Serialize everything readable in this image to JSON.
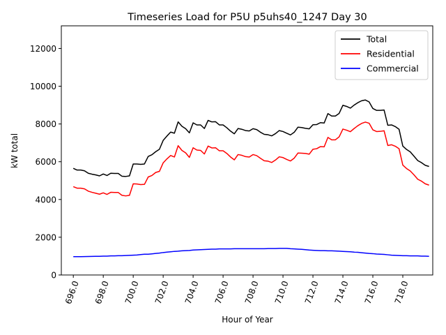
{
  "chart_data": {
    "type": "line",
    "title": "Timeseries Load for P5U p5uhs40_1247  Day 30",
    "xlabel": "Hour of Year",
    "ylabel": "kW total",
    "xlim": [
      695.2,
      720.0
    ],
    "ylim": [
      0,
      13200
    ],
    "xticks": [
      696,
      698,
      700,
      702,
      704,
      706,
      708,
      710,
      712,
      714,
      716,
      718
    ],
    "xtick_labels": [
      "696.0",
      "698.0",
      "700.0",
      "702.0",
      "704.0",
      "706.0",
      "708.0",
      "710.0",
      "712.0",
      "714.0",
      "716.0",
      "718.0"
    ],
    "yticks": [
      0,
      2000,
      4000,
      6000,
      8000,
      10000,
      12000
    ],
    "ytick_labels": [
      "0",
      "2000",
      "4000",
      "6000",
      "8000",
      "10000",
      "12000"
    ],
    "legend_position": "top-right",
    "x": [
      696.0,
      696.25,
      696.5,
      696.75,
      697.0,
      697.25,
      697.5,
      697.75,
      698.0,
      698.25,
      698.5,
      698.75,
      699.0,
      699.25,
      699.5,
      699.75,
      700.0,
      700.25,
      700.5,
      700.75,
      701.0,
      701.25,
      701.5,
      701.75,
      702.0,
      702.25,
      702.5,
      702.75,
      703.0,
      703.25,
      703.5,
      703.75,
      704.0,
      704.25,
      704.5,
      704.75,
      705.0,
      705.25,
      705.5,
      705.75,
      706.0,
      706.25,
      706.5,
      706.75,
      707.0,
      707.25,
      707.5,
      707.75,
      708.0,
      708.25,
      708.5,
      708.75,
      709.0,
      709.25,
      709.5,
      709.75,
      710.0,
      710.25,
      710.5,
      710.75,
      711.0,
      711.25,
      711.5,
      711.75,
      712.0,
      712.25,
      712.5,
      712.75,
      713.0,
      713.25,
      713.5,
      713.75,
      714.0,
      714.25,
      714.5,
      714.75,
      715.0,
      715.25,
      715.5,
      715.75,
      716.0,
      716.25,
      716.5,
      716.75,
      717.0,
      717.25,
      717.5,
      717.75,
      718.0,
      718.25,
      718.5,
      718.75,
      719.0,
      719.25,
      719.5,
      719.75
    ],
    "series": [
      {
        "name": "Total",
        "color": "#000000",
        "values": [
          5650,
          5560,
          5560,
          5520,
          5390,
          5340,
          5300,
          5250,
          5350,
          5270,
          5390,
          5380,
          5380,
          5230,
          5220,
          5250,
          5880,
          5880,
          5860,
          5880,
          6280,
          6370,
          6530,
          6660,
          7130,
          7360,
          7570,
          7510,
          8110,
          7880,
          7750,
          7530,
          8060,
          7950,
          7950,
          7760,
          8190,
          8110,
          8120,
          7950,
          7950,
          7800,
          7620,
          7480,
          7760,
          7720,
          7650,
          7630,
          7750,
          7700,
          7560,
          7450,
          7430,
          7370,
          7490,
          7650,
          7600,
          7510,
          7420,
          7560,
          7830,
          7810,
          7770,
          7740,
          7960,
          7970,
          8070,
          8050,
          8550,
          8420,
          8420,
          8560,
          8990,
          8930,
          8840,
          9000,
          9130,
          9230,
          9270,
          9170,
          8820,
          8720,
          8720,
          8740,
          7930,
          7950,
          7860,
          7720,
          6830,
          6650,
          6520,
          6290,
          6060,
          5950,
          5810,
          5750
        ]
      },
      {
        "name": "Residential",
        "color": "#ff0000",
        "values": [
          4680,
          4600,
          4600,
          4560,
          4440,
          4380,
          4330,
          4280,
          4350,
          4270,
          4380,
          4370,
          4370,
          4220,
          4190,
          4220,
          4830,
          4820,
          4790,
          4800,
          5190,
          5270,
          5430,
          5490,
          5940,
          6150,
          6330,
          6250,
          6850,
          6600,
          6470,
          6230,
          6740,
          6620,
          6600,
          6410,
          6830,
          6730,
          6740,
          6580,
          6580,
          6440,
          6250,
          6100,
          6380,
          6340,
          6270,
          6250,
          6380,
          6320,
          6180,
          6050,
          6030,
          5960,
          6090,
          6260,
          6220,
          6120,
          6040,
          6190,
          6460,
          6450,
          6440,
          6400,
          6660,
          6690,
          6800,
          6790,
          7290,
          7160,
          7160,
          7320,
          7730,
          7670,
          7590,
          7760,
          7910,
          8030,
          8100,
          8040,
          7690,
          7600,
          7610,
          7640,
          6860,
          6900,
          6820,
          6690,
          5820,
          5640,
          5510,
          5300,
          5070,
          4970,
          4830,
          4760
        ]
      },
      {
        "name": "Commercial",
        "color": "#0000ff",
        "values": [
          970,
          970,
          970,
          975,
          980,
          985,
          990,
          990,
          1000,
          1000,
          1010,
          1010,
          1020,
          1020,
          1030,
          1040,
          1050,
          1060,
          1080,
          1100,
          1100,
          1120,
          1140,
          1160,
          1190,
          1210,
          1230,
          1250,
          1260,
          1280,
          1290,
          1300,
          1320,
          1330,
          1340,
          1350,
          1360,
          1370,
          1370,
          1380,
          1380,
          1380,
          1380,
          1390,
          1390,
          1390,
          1390,
          1390,
          1390,
          1390,
          1390,
          1390,
          1400,
          1400,
          1400,
          1410,
          1410,
          1410,
          1390,
          1380,
          1370,
          1360,
          1340,
          1320,
          1310,
          1300,
          1290,
          1290,
          1280,
          1280,
          1270,
          1260,
          1250,
          1240,
          1230,
          1210,
          1200,
          1180,
          1160,
          1140,
          1130,
          1110,
          1100,
          1090,
          1070,
          1050,
          1040,
          1030,
          1020,
          1020,
          1010,
          1010,
          1010,
          1000,
          1000,
          990
        ]
      }
    ]
  }
}
